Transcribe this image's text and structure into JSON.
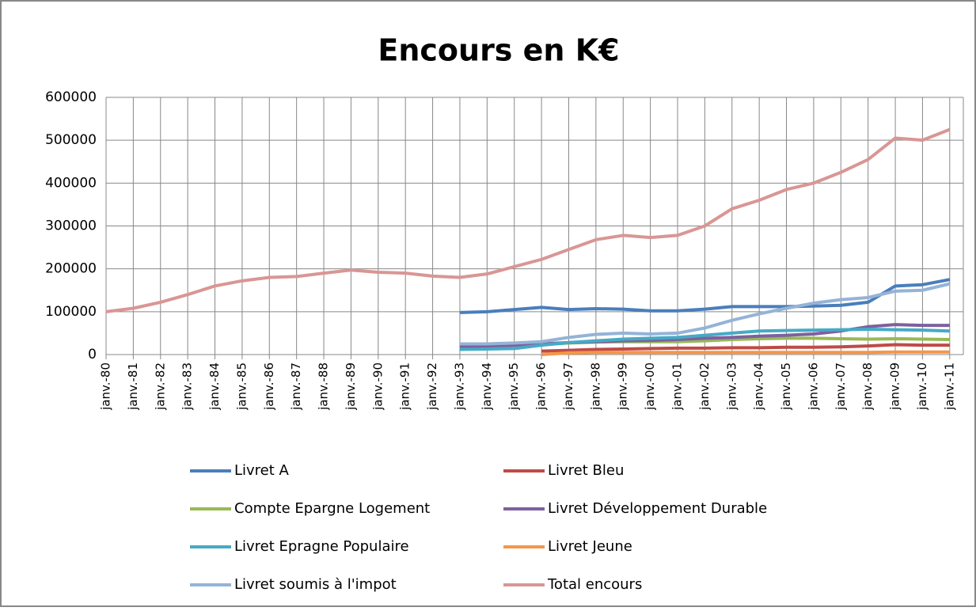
{
  "chart_data": {
    "type": "line",
    "title": "Encours en K€",
    "categories": [
      "janv.-80",
      "janv.-81",
      "janv.-82",
      "janv.-83",
      "janv.-84",
      "janv.-85",
      "janv.-86",
      "janv.-87",
      "janv.-88",
      "janv.-89",
      "janv.-90",
      "janv.-91",
      "janv.-92",
      "janv.-93",
      "janv.-94",
      "janv.-95",
      "janv.-96",
      "janv.-97",
      "janv.-98",
      "janv.-99",
      "janv.-00",
      "janv.-01",
      "janv.-02",
      "janv.-03",
      "janv.-04",
      "janv.-05",
      "janv.-06",
      "janv.-07",
      "janv.-08",
      "janv.-09",
      "janv.-10",
      "janv.-11"
    ],
    "series": [
      {
        "name": "Livret A",
        "color": "#4a7ebb",
        "values": [
          null,
          null,
          null,
          null,
          null,
          null,
          null,
          null,
          null,
          null,
          null,
          null,
          null,
          98000,
          100000,
          105000,
          110000,
          105000,
          107000,
          106000,
          102000,
          102000,
          106000,
          112000,
          112000,
          112000,
          113000,
          115000,
          122000,
          160000,
          163000,
          175000
        ]
      },
      {
        "name": "Livret Bleu",
        "color": "#be4b48",
        "values": [
          null,
          null,
          null,
          null,
          null,
          null,
          null,
          null,
          null,
          null,
          null,
          null,
          null,
          null,
          null,
          null,
          8000,
          10000,
          12000,
          13000,
          14000,
          15000,
          15000,
          16000,
          16000,
          17000,
          17000,
          18000,
          20000,
          23000,
          22000,
          22000
        ]
      },
      {
        "name": "Compte Epargne Logement",
        "color": "#98b954",
        "values": [
          null,
          null,
          null,
          null,
          null,
          null,
          null,
          null,
          null,
          null,
          null,
          null,
          null,
          15000,
          17000,
          20000,
          23000,
          27000,
          29000,
          30000,
          30000,
          30000,
          32000,
          35000,
          37000,
          38000,
          38000,
          37000,
          36000,
          37000,
          36000,
          35000
        ]
      },
      {
        "name": "Livret Développement Durable",
        "color": "#7d60a0",
        "values": [
          null,
          null,
          null,
          null,
          null,
          null,
          null,
          null,
          null,
          null,
          null,
          null,
          null,
          18000,
          20000,
          22000,
          25000,
          28000,
          30000,
          32000,
          33000,
          35000,
          38000,
          40000,
          43000,
          45000,
          48000,
          55000,
          65000,
          70000,
          68000,
          68000
        ]
      },
      {
        "name": "Livret Epragne Populaire",
        "color": "#46aac5",
        "values": [
          null,
          null,
          null,
          null,
          null,
          null,
          null,
          null,
          null,
          null,
          null,
          null,
          null,
          12000,
          13000,
          14000,
          22000,
          28000,
          32000,
          36000,
          38000,
          40000,
          45000,
          50000,
          55000,
          56000,
          57000,
          58000,
          59000,
          58000,
          57000,
          55000
        ]
      },
      {
        "name": "Livret Jeune",
        "color": "#f79646",
        "values": [
          null,
          null,
          null,
          null,
          null,
          null,
          null,
          null,
          null,
          null,
          null,
          null,
          null,
          null,
          null,
          null,
          0,
          4000,
          5000,
          5000,
          5000,
          5000,
          5000,
          5000,
          5000,
          5000,
          5000,
          5000,
          5000,
          6000,
          6000,
          6000
        ]
      },
      {
        "name": "Livret soumis à l'impot",
        "color": "#95b3d7",
        "values": [
          null,
          null,
          null,
          null,
          null,
          null,
          null,
          null,
          null,
          null,
          null,
          null,
          null,
          25000,
          25000,
          27000,
          30000,
          40000,
          47000,
          50000,
          48000,
          50000,
          62000,
          80000,
          95000,
          108000,
          120000,
          128000,
          133000,
          148000,
          150000,
          165000
        ]
      },
      {
        "name": "Total encours",
        "color": "#d99694",
        "values": [
          100000,
          108000,
          122000,
          140000,
          160000,
          172000,
          180000,
          182000,
          190000,
          197000,
          192000,
          190000,
          183000,
          180000,
          188000,
          205000,
          222000,
          245000,
          268000,
          278000,
          273000,
          278000,
          300000,
          340000,
          360000,
          385000,
          400000,
          425000,
          455000,
          505000,
          500000,
          525000
        ]
      }
    ],
    "ylim": [
      0,
      600000
    ],
    "yticks": [
      0,
      100000,
      200000,
      300000,
      400000,
      500000,
      600000
    ],
    "grid": true
  }
}
